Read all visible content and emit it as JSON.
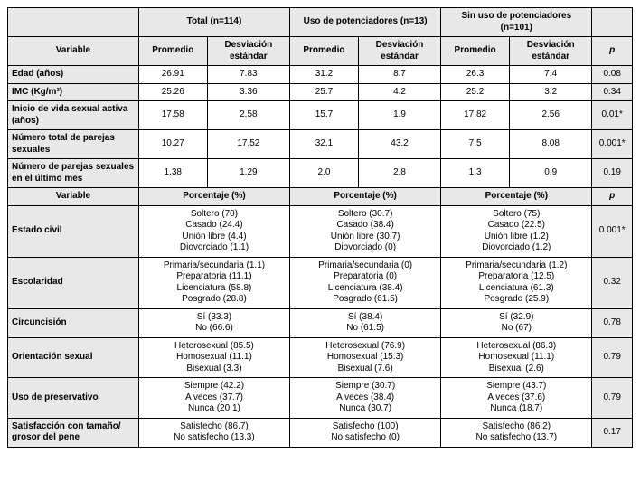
{
  "headers": {
    "variable": "Variable",
    "group_total": "Total (n=114)",
    "group_with": "Uso de potenciadores (n=13)",
    "group_without": "Sin uso de potenciadores (n=101)",
    "mean": "Promedio",
    "sd": "Desviación estándar",
    "sd_multiline": "Desviación\nestándar",
    "p": "p",
    "pct": "Porcentaje (%)"
  },
  "part1_rows": [
    {
      "label": "Edad (años)",
      "t_m": "26.91",
      "t_sd": "7.83",
      "w_m": "31.2",
      "w_sd": "8.7",
      "wo_m": "26.3",
      "wo_sd": "7.4",
      "p": "0.08"
    },
    {
      "label": "IMC (Kg/m²)",
      "t_m": "25.26",
      "t_sd": "3.36",
      "w_m": "25.7",
      "w_sd": "4.2",
      "wo_m": "25.2",
      "wo_sd": "3.2",
      "p": "0.34"
    },
    {
      "label": "Inicio de vida sexual activa (años)",
      "t_m": "17.58",
      "t_sd": "2.58",
      "w_m": "15.7",
      "w_sd": "1.9",
      "wo_m": "17.82",
      "wo_sd": "2.56",
      "p": "0.01*"
    },
    {
      "label": "Número total de parejas sexuales",
      "t_m": "10.27",
      "t_sd": "17.52",
      "w_m": "32.1",
      "w_sd": "43.2",
      "wo_m": "7.5",
      "wo_sd": "8.08",
      "p": "0.001*"
    },
    {
      "label": "Número de parejas sexuales en el último mes",
      "t_m": "1.38",
      "t_sd": "1.29",
      "w_m": "2.0",
      "w_sd": "2.8",
      "wo_m": "1.3",
      "wo_sd": "0.9",
      "p": "0.19"
    }
  ],
  "part2_rows": [
    {
      "label": "Estado civil",
      "total": "Soltero (70)\nCasado (24.4)\nUnión libre (4.4)\nDiovorciado (1.1)",
      "with": "Soltero (30.7)\nCasado (38.4)\nUnión libre (30.7)\nDiovorciado (0)",
      "without": "Soltero (75)\nCasado (22.5)\nUnión libre (1.2)\nDiovorciado (1.2)",
      "p": "0.001*"
    },
    {
      "label": "Escolaridad",
      "total": "Primaria/secundaria (1.1)\nPreparatoria (11.1)\nLicenciatura (58.8)\nPosgrado (28.8)",
      "with": "Primaria/secundaria (0)\nPreparatoria (0)\nLicenciatura (38.4)\nPosgrado (61.5)",
      "without": "Primaria/secundaria (1.2)\nPreparatoria (12.5)\nLicenciatura (61.3)\nPosgrado (25.9)",
      "p": "0.32"
    },
    {
      "label": "Circuncisión",
      "total": "Sí (33.3)\nNo (66.6)",
      "with": "Sí (38.4)\nNo (61.5)",
      "without": "Sí (32.9)\nNo (67)",
      "p": "0.78"
    },
    {
      "label": "Orientación sexual",
      "total": "Heterosexual (85.5)\nHomosexual (11.1)\nBisexual (3.3)",
      "with": "Heterosexual (76.9)\nHomosexual (15.3)\nBisexual (7.6)",
      "without": "Heterosexual (86.3)\nHomosexual (11.1)\nBisexual (2.6)",
      "p": "0.79"
    },
    {
      "label": "Uso de preservativo",
      "total": "Siempre (42.2)\nA veces (37.7)\nNunca (20.1)",
      "with": "Siempre (30.7)\nA veces (38.4)\nNunca (30.7)",
      "without": "Siempre (43.7)\nA veces (37.6)\nNunca (18.7)",
      "p": "0.79"
    },
    {
      "label": "Satisfacción con tamaño/ grosor del pene",
      "total": "Satisfecho (86.7)\nNo satisfecho (13.3)",
      "with": "Satisfecho (100)\nNo satisfecho (0)",
      "without": "Satisfecho (86.2)\nNo satisfecho (13.7)",
      "p": "0.17"
    }
  ]
}
